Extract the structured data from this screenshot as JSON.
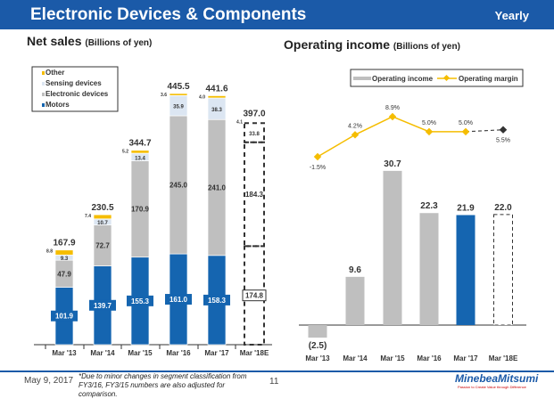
{
  "header": {
    "title": "Electronic Devices & Components",
    "period": "Yearly"
  },
  "left_title": {
    "main": "Net sales",
    "unit": "(Billions of yen)"
  },
  "right_title": {
    "main": "Operating income",
    "unit": "(Billions of yen)"
  },
  "chart_data": [
    {
      "type": "bar",
      "stacked": true,
      "title": "Net sales (Billions of yen)",
      "categories": [
        "Mar '13",
        "Mar '14",
        "Mar '15",
        "Mar '16",
        "Mar '17",
        "Mar '18E"
      ],
      "series": [
        {
          "name": "Motors",
          "color": "#1565b0",
          "values": [
            101.9,
            139.7,
            155.3,
            161.0,
            158.3,
            174.8
          ]
        },
        {
          "name": "Electronic devices",
          "color": "#bfbfbf",
          "values": [
            47.9,
            72.7,
            170.9,
            245.0,
            241.0,
            184.3
          ]
        },
        {
          "name": "Sensing devices",
          "color": "#dce6f2",
          "values": [
            9.3,
            10.7,
            13.4,
            35.9,
            38.3,
            33.8
          ]
        },
        {
          "name": "Other",
          "color": "#f5bd00",
          "values": [
            8.8,
            7.4,
            5.2,
            3.6,
            4.0,
            4.1
          ]
        }
      ],
      "totals": [
        "167.9",
        "230.5",
        "344.7",
        "445.5",
        "441.6",
        "397.0"
      ],
      "estimate_category": "Mar '18E",
      "legend": "top-left"
    },
    {
      "type": "bar+line",
      "title": "Operating income (Billions of yen)",
      "categories": [
        "Mar '13",
        "Mar '14",
        "Mar '15",
        "Mar '16",
        "Mar '17",
        "Mar '18E"
      ],
      "series": [
        {
          "name": "Operating income",
          "values": [
            -2.5,
            9.6,
            30.7,
            22.3,
            21.9,
            22.0
          ],
          "labels": [
            "(2.5)",
            "9.6",
            "30.7",
            "22.3",
            "21.9",
            "22.0"
          ]
        },
        {
          "name": "Operating margin",
          "color": "#f5bd00",
          "values": [
            -1.5,
            4.2,
            8.9,
            5.0,
            5.0,
            5.5
          ],
          "labels": [
            "-1.5%",
            "4.2%",
            "8.9%",
            "5.0%",
            "5.0%",
            "5.5%"
          ]
        }
      ],
      "highlight_color": "#1565b0",
      "bar_color": "#bfbfbf",
      "legend": "top-right"
    }
  ],
  "footer": {
    "date": "May 9, 2017",
    "note": "*Due to minor changes in segment classification from FY3/16, FY3/15 numbers are also adjusted for comparison.",
    "page": "11",
    "logo": "MinebeaMitsumi",
    "tagline": "Passion to Create Value through Difference"
  }
}
